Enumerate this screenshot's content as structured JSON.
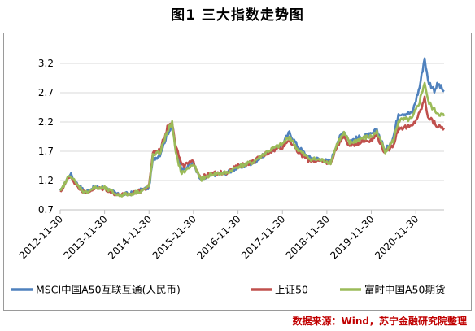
{
  "title": "图1  三大指数走势图",
  "source": "数据来源：Wind，苏宁金融研究院整理",
  "chart_data": {
    "type": "line",
    "title": "图1  三大指数走势图",
    "xlabel": "",
    "ylabel": "",
    "ylim": [
      0.7,
      3.45
    ],
    "y_ticks": [
      "0.7",
      "1.2",
      "1.7",
      "2.2",
      "2.7",
      "3.2"
    ],
    "x_ticks": [
      "2012-11-30",
      "2013-11-30",
      "2014-11-30",
      "2015-11-30",
      "2016-11-30",
      "2017-11-30",
      "2018-11-30",
      "2019-11-30",
      "2020-11-30"
    ],
    "x_range": [
      "2012-11-30",
      "2021-07-20"
    ],
    "grid": "horizontal",
    "legend_position": "bottom",
    "series": [
      {
        "name": "MSCI中国A50互联互通(人民币)",
        "color": "#4f81bd",
        "points": [
          [
            "2012-11-30",
            1.0
          ],
          [
            "2013-01-31",
            1.25
          ],
          [
            "2013-02-20",
            1.32
          ],
          [
            "2013-04-15",
            1.15
          ],
          [
            "2013-06-25",
            1.0
          ],
          [
            "2013-08-30",
            1.08
          ],
          [
            "2013-11-30",
            1.08
          ],
          [
            "2014-03-20",
            0.96
          ],
          [
            "2014-06-30",
            0.98
          ],
          [
            "2014-09-30",
            1.04
          ],
          [
            "2014-11-30",
            1.08
          ],
          [
            "2014-12-31",
            1.55
          ],
          [
            "2015-02-28",
            1.65
          ],
          [
            "2015-04-30",
            2.0
          ],
          [
            "2015-06-08",
            2.15
          ],
          [
            "2015-07-08",
            1.75
          ],
          [
            "2015-08-26",
            1.4
          ],
          [
            "2015-11-30",
            1.5
          ],
          [
            "2016-01-28",
            1.2
          ],
          [
            "2016-04-30",
            1.3
          ],
          [
            "2016-08-30",
            1.33
          ],
          [
            "2016-11-30",
            1.42
          ],
          [
            "2017-03-31",
            1.5
          ],
          [
            "2017-07-31",
            1.68
          ],
          [
            "2017-11-30",
            1.82
          ],
          [
            "2018-01-26",
            2.02
          ],
          [
            "2018-03-30",
            1.8
          ],
          [
            "2018-06-30",
            1.6
          ],
          [
            "2018-10-30",
            1.55
          ],
          [
            "2018-12-31",
            1.52
          ],
          [
            "2019-02-28",
            1.88
          ],
          [
            "2019-04-20",
            2.05
          ],
          [
            "2019-06-05",
            1.88
          ],
          [
            "2019-09-30",
            1.96
          ],
          [
            "2019-11-30",
            1.98
          ],
          [
            "2020-01-15",
            2.07
          ],
          [
            "2020-03-23",
            1.7
          ],
          [
            "2020-05-30",
            1.95
          ],
          [
            "2020-07-10",
            2.35
          ],
          [
            "2020-10-30",
            2.35
          ],
          [
            "2020-12-31",
            2.8
          ],
          [
            "2021-02-10",
            3.3
          ],
          [
            "2021-03-10",
            2.9
          ],
          [
            "2021-05-01",
            2.75
          ],
          [
            "2021-06-01",
            2.85
          ],
          [
            "2021-07-20",
            2.72
          ]
        ]
      },
      {
        "name": "上证50",
        "color": "#c0504d",
        "points": [
          [
            "2012-11-30",
            1.0
          ],
          [
            "2013-01-31",
            1.22
          ],
          [
            "2013-02-20",
            1.28
          ],
          [
            "2013-04-15",
            1.12
          ],
          [
            "2013-06-25",
            0.98
          ],
          [
            "2013-08-30",
            1.06
          ],
          [
            "2013-11-30",
            1.06
          ],
          [
            "2014-03-20",
            0.95
          ],
          [
            "2014-06-30",
            0.97
          ],
          [
            "2014-09-30",
            1.03
          ],
          [
            "2014-11-30",
            1.1
          ],
          [
            "2014-12-31",
            1.68
          ],
          [
            "2015-02-28",
            1.72
          ],
          [
            "2015-04-30",
            2.1
          ],
          [
            "2015-06-08",
            2.22
          ],
          [
            "2015-07-08",
            1.8
          ],
          [
            "2015-08-26",
            1.45
          ],
          [
            "2015-11-30",
            1.52
          ],
          [
            "2016-01-28",
            1.25
          ],
          [
            "2016-04-30",
            1.32
          ],
          [
            "2016-08-30",
            1.34
          ],
          [
            "2016-11-30",
            1.45
          ],
          [
            "2017-03-31",
            1.52
          ],
          [
            "2017-07-31",
            1.68
          ],
          [
            "2017-11-30",
            1.78
          ],
          [
            "2018-01-26",
            1.9
          ],
          [
            "2018-03-30",
            1.7
          ],
          [
            "2018-06-30",
            1.55
          ],
          [
            "2018-10-30",
            1.52
          ],
          [
            "2018-12-31",
            1.5
          ],
          [
            "2019-02-28",
            1.82
          ],
          [
            "2019-04-20",
            1.95
          ],
          [
            "2019-06-05",
            1.8
          ],
          [
            "2019-09-30",
            1.88
          ],
          [
            "2019-11-30",
            1.9
          ],
          [
            "2020-01-15",
            1.98
          ],
          [
            "2020-03-23",
            1.66
          ],
          [
            "2020-05-30",
            1.82
          ],
          [
            "2020-07-10",
            2.1
          ],
          [
            "2020-10-30",
            2.12
          ],
          [
            "2020-12-31",
            2.35
          ],
          [
            "2021-02-10",
            2.6
          ],
          [
            "2021-03-10",
            2.3
          ],
          [
            "2021-05-01",
            2.18
          ],
          [
            "2021-06-01",
            2.12
          ],
          [
            "2021-07-20",
            2.1
          ]
        ]
      },
      {
        "name": "富时中国A50期货",
        "color": "#9bbb59",
        "points": [
          [
            "2012-11-30",
            1.0
          ],
          [
            "2013-01-31",
            1.24
          ],
          [
            "2013-02-20",
            1.3
          ],
          [
            "2013-04-15",
            1.13
          ],
          [
            "2013-06-25",
            0.99
          ],
          [
            "2013-08-30",
            1.07
          ],
          [
            "2013-11-30",
            1.07
          ],
          [
            "2014-03-20",
            0.95
          ],
          [
            "2014-06-30",
            0.97
          ],
          [
            "2014-09-30",
            1.03
          ],
          [
            "2014-11-30",
            1.09
          ],
          [
            "2014-12-31",
            1.62
          ],
          [
            "2015-02-28",
            1.68
          ],
          [
            "2015-04-30",
            2.05
          ],
          [
            "2015-06-08",
            2.18
          ],
          [
            "2015-07-08",
            1.65
          ],
          [
            "2015-08-26",
            1.32
          ],
          [
            "2015-11-30",
            1.48
          ],
          [
            "2016-01-28",
            1.22
          ],
          [
            "2016-04-30",
            1.31
          ],
          [
            "2016-08-30",
            1.33
          ],
          [
            "2016-11-30",
            1.44
          ],
          [
            "2017-03-31",
            1.51
          ],
          [
            "2017-07-31",
            1.7
          ],
          [
            "2017-11-30",
            1.82
          ],
          [
            "2018-01-26",
            1.96
          ],
          [
            "2018-03-30",
            1.74
          ],
          [
            "2018-06-30",
            1.58
          ],
          [
            "2018-10-30",
            1.54
          ],
          [
            "2018-12-31",
            1.51
          ],
          [
            "2019-02-28",
            1.86
          ],
          [
            "2019-04-20",
            2.0
          ],
          [
            "2019-06-05",
            1.84
          ],
          [
            "2019-09-30",
            1.93
          ],
          [
            "2019-11-30",
            1.95
          ],
          [
            "2020-01-15",
            2.03
          ],
          [
            "2020-03-23",
            1.7
          ],
          [
            "2020-05-30",
            1.88
          ],
          [
            "2020-07-10",
            2.22
          ],
          [
            "2020-10-30",
            2.25
          ],
          [
            "2020-12-31",
            2.55
          ],
          [
            "2021-02-10",
            2.88
          ],
          [
            "2021-03-10",
            2.55
          ],
          [
            "2021-05-01",
            2.4
          ],
          [
            "2021-06-01",
            2.35
          ],
          [
            "2021-07-20",
            2.3
          ]
        ]
      }
    ]
  }
}
